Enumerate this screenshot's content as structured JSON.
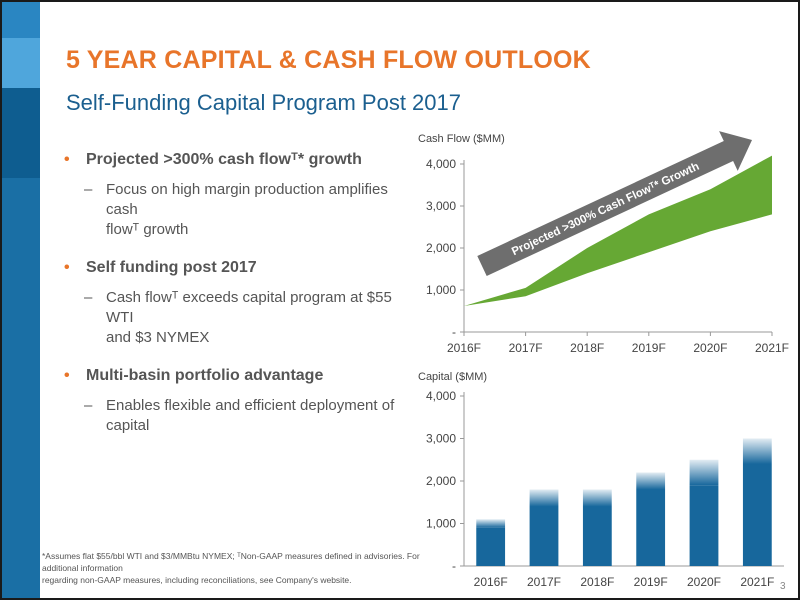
{
  "slide": {
    "title": "5 YEAR CAPITAL & CASH FLOW OUTLOOK",
    "subtitle": "Self-Funding Capital Program Post 2017",
    "bullets": [
      {
        "text": "Projected >300% cash flowᵀ* growth",
        "sub": [
          "Focus on high margin production amplifies cash",
          "flowᵀ growth"
        ]
      },
      {
        "text": "Self funding post 2017",
        "sub": [
          "Cash flowᵀ exceeds capital program at $55 WTI",
          "and $3 NYMEX"
        ]
      },
      {
        "text": "Multi-basin portfolio advantage",
        "sub": [
          "Enables flexible and efficient deployment of",
          "capital"
        ]
      }
    ],
    "footnote": [
      "*Assumes flat $55/bbl WTI and $3/MMBtu NYMEX; ᵀNon-GAAP measures defined in advisories. For additional information",
      "regarding non-GAAP measures, including reconciliations, see Company's website."
    ],
    "page_number": "3"
  },
  "chart_data": [
    {
      "type": "area",
      "ylabel": "Cash Flow ($MM)",
      "categories": [
        "2016F",
        "2017F",
        "2018F",
        "2019F",
        "2020F",
        "2021F"
      ],
      "yticks": [
        "-",
        "1,000",
        "2,000",
        "3,000",
        "4,000"
      ],
      "ylim": [
        0,
        4000
      ],
      "series": [
        {
          "name": "low",
          "values": [
            620,
            850,
            1400,
            1900,
            2400,
            2800
          ]
        },
        {
          "name": "high",
          "values": [
            620,
            1050,
            2000,
            2800,
            3400,
            4200
          ]
        }
      ],
      "annotation": "Projected >300% Cash Flowᵀ* Growth",
      "colors": {
        "area": "#66a834",
        "arrow": "#6e6e6e",
        "axis": "#999999"
      }
    },
    {
      "type": "bar",
      "ylabel": "Capital ($MM)",
      "categories": [
        "2016F",
        "2017F",
        "2018F",
        "2019F",
        "2020F",
        "2021F"
      ],
      "yticks": [
        "-",
        "1,000",
        "2,000",
        "3,000",
        "4,000"
      ],
      "ylim": [
        0,
        4000
      ],
      "series": [
        {
          "name": "low",
          "values": [
            900,
            1400,
            1400,
            1800,
            1900,
            2400
          ]
        },
        {
          "name": "high",
          "values": [
            1100,
            1800,
            1800,
            2200,
            2500,
            3000
          ]
        }
      ],
      "colors": {
        "bar": "#17679c",
        "axis": "#999999"
      }
    }
  ]
}
